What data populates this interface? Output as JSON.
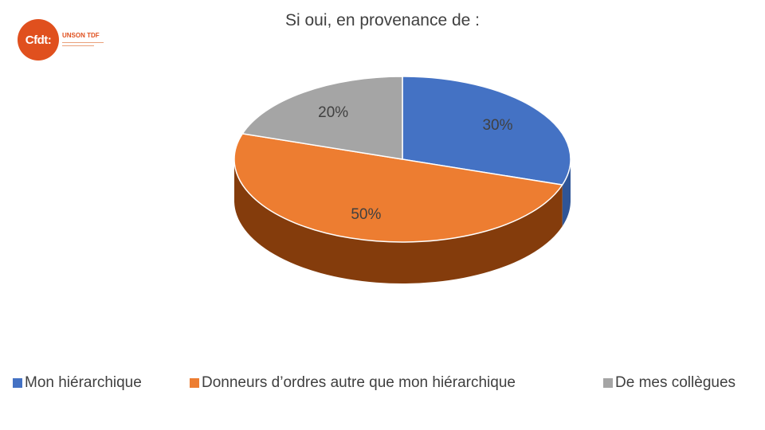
{
  "logo": {
    "mark": "Cfdt:",
    "org": "UNSON TDF",
    "brand_color": "#e0501e"
  },
  "chart_data": {
    "type": "pie",
    "title": "Si oui, en provenance de :",
    "categories": [
      "Mon hiérarchique",
      "Donneurs d’ordres autre que mon hiérarchique",
      "De mes collègues"
    ],
    "values": [
      30,
      50,
      20
    ],
    "data_labels": [
      "30%",
      "50%",
      "20%"
    ],
    "colors": [
      "#4472c4",
      "#ed7d31",
      "#a5a5a5"
    ],
    "side_colors": [
      "#2f5597",
      "#843c0c",
      "#7f7f7f"
    ],
    "style": "3d",
    "legend_position": "bottom"
  }
}
